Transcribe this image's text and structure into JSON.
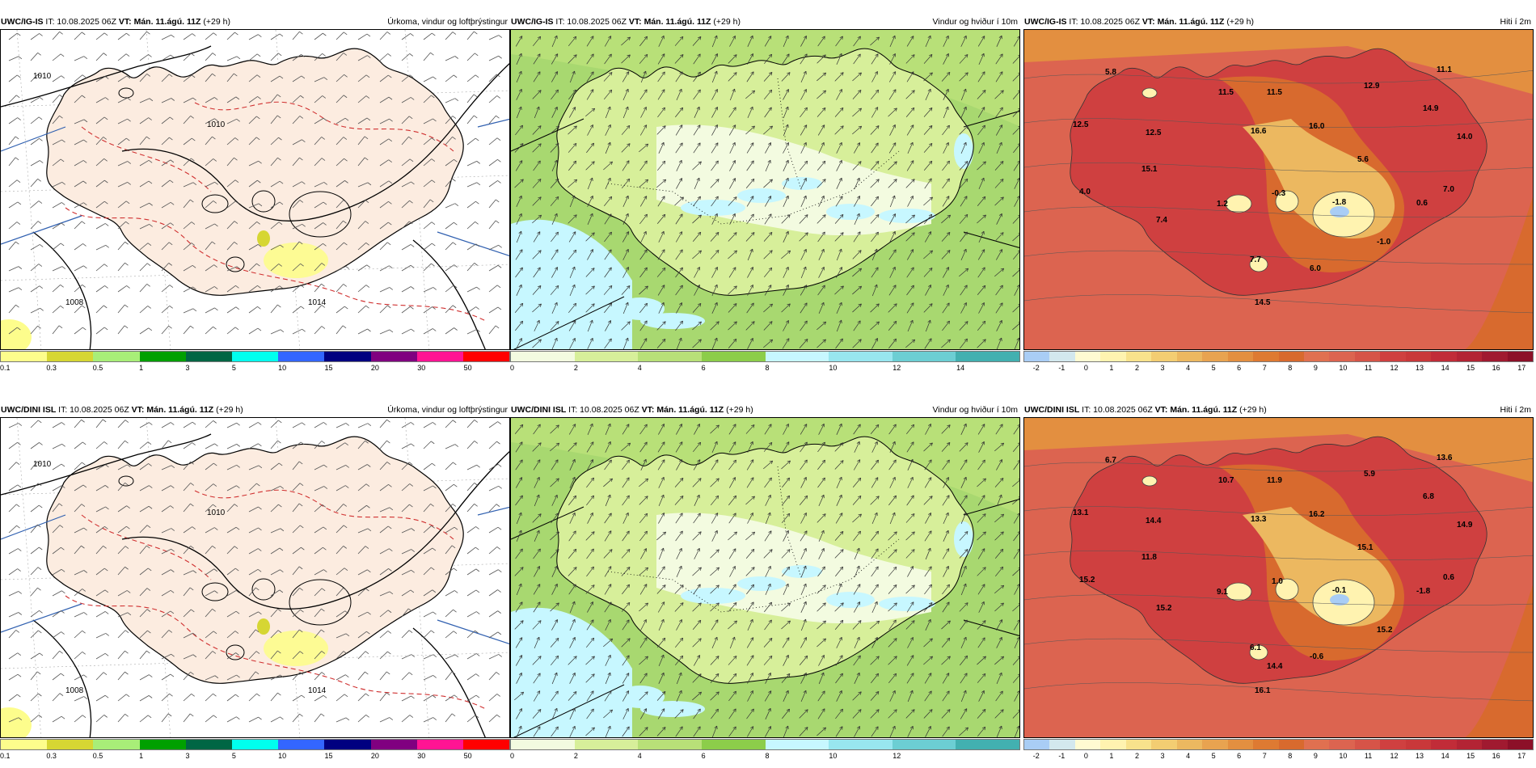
{
  "panels": [
    {
      "model": "UWC/IG-IS",
      "it": "IT: 10.08.2025 06Z",
      "vt_label": "VT:",
      "vt": "Mán. 11.ágú. 11Z",
      "lead": "(+29 h)",
      "title": "Úrkoma, vindur og loftþrýstingur",
      "kind": "precip",
      "ticks": [
        "0.1",
        "0.3",
        "0.5",
        "1",
        "3",
        "5",
        "10",
        "15",
        "20",
        "30",
        "50"
      ],
      "pressure": [
        "1010",
        "1010",
        "1014",
        "1008"
      ]
    },
    {
      "model": "UWC/IG-IS",
      "it": "IT: 10.08.2025 06Z",
      "vt_label": "VT:",
      "vt": "Mán. 11.ágú. 11Z",
      "lead": "(+29 h)",
      "title": "Vindur og hviður í 10m",
      "kind": "wind",
      "ticks": [
        "0",
        "2",
        "4",
        "6",
        "8",
        "10",
        "12",
        "14"
      ]
    },
    {
      "model": "UWC/IG-IS",
      "it": "IT: 10.08.2025 06Z",
      "vt_label": "VT:",
      "vt": "Mán. 11.ágú. 11Z",
      "lead": "(+29 h)",
      "title": "Hiti í 2m",
      "kind": "temp",
      "ticks": [
        "-2",
        "-1",
        "0",
        "1",
        "2",
        "3",
        "4",
        "5",
        "6",
        "7",
        "8",
        "9",
        "10",
        "11",
        "12",
        "13",
        "14",
        "15",
        "16",
        "17"
      ],
      "values": [
        "5.8",
        "11.5",
        "11.5",
        "12.9",
        "11.1",
        "12.5",
        "12.5",
        "16.6",
        "16.0",
        "14.9",
        "14.0",
        "15.1",
        "5.6",
        "4.0",
        "1.2",
        "-0.3",
        "-1.8",
        "0.6",
        "7.0",
        "7.4",
        "-1.0",
        "7.7",
        "6.0",
        "14.5"
      ]
    },
    {
      "model": "UWC/DINI ISL",
      "it": "IT: 10.08.2025 06Z",
      "vt_label": "VT:",
      "vt": "Mán. 11.ágú. 11Z",
      "lead": "(+29 h)",
      "title": "Úrkoma, vindur og loftþrýstingur",
      "kind": "precip",
      "ticks": [
        "0.1",
        "0.3",
        "0.5",
        "1",
        "3",
        "5",
        "10",
        "15",
        "20",
        "30",
        "50"
      ],
      "pressure": [
        "1010",
        "1010",
        "1014",
        "1008"
      ]
    },
    {
      "model": "UWC/DINI ISL",
      "it": "IT: 10.08.2025 06Z",
      "vt_label": "VT:",
      "vt": "Mán. 11.ágú. 11Z",
      "lead": "(+29 h)",
      "title": "Vindur og hviður í 10m",
      "kind": "wind",
      "ticks": [
        "0",
        "2",
        "4",
        "6",
        "8",
        "10",
        "12"
      ]
    },
    {
      "model": "UWC/DINI ISL",
      "it": "IT: 10.08.2025 06Z",
      "vt_label": "VT:",
      "vt": "Mán. 11.ágú. 11Z",
      "lead": "(+29 h)",
      "title": "Hiti í 2m",
      "kind": "temp",
      "ticks": [
        "-2",
        "-1",
        "0",
        "1",
        "2",
        "3",
        "4",
        "5",
        "6",
        "7",
        "8",
        "9",
        "10",
        "11",
        "12",
        "13",
        "14",
        "15",
        "16",
        "17"
      ],
      "values": [
        "6.7",
        "10.7",
        "11.9",
        "5.9",
        "13.6",
        "13.1",
        "14.4",
        "13.3",
        "16.2",
        "6.8",
        "14.9",
        "11.8",
        "15.1",
        "15.2",
        "9.1",
        "1.0",
        "-0.1",
        "-1.8",
        "0.6",
        "15.2",
        "15.2",
        "6.1",
        "-0.6",
        "16.1",
        "14.4"
      ]
    }
  ],
  "colors": {
    "precip": [
      "#fdfd8c",
      "#d6d633",
      "#a8ee78",
      "#00a000",
      "#006644",
      "#00ffee",
      "#3366ff",
      "#000080",
      "#800080",
      "#ff1493",
      "#ff0000"
    ],
    "wind": [
      "#f3fbe0",
      "#d7ef9a",
      "#b8e078",
      "#8ccd4a",
      "#c7f7ff",
      "#98e6ef",
      "#6cced3",
      "#42b0b0"
    ],
    "temp": [
      "#a9cdf5",
      "#d3e8ee",
      "#fffbd2",
      "#fff3b0",
      "#f8e28c",
      "#f3cd72",
      "#ecb860",
      "#e8a350",
      "#e38f40",
      "#de7a32",
      "#d86a2e",
      "#e07050",
      "#dc6450",
      "#d65448",
      "#cf4040",
      "#c9383a",
      "#c12c38",
      "#b32434",
      "#a01a30",
      "#8c1028"
    ],
    "land_precip": "#fcece0"
  }
}
